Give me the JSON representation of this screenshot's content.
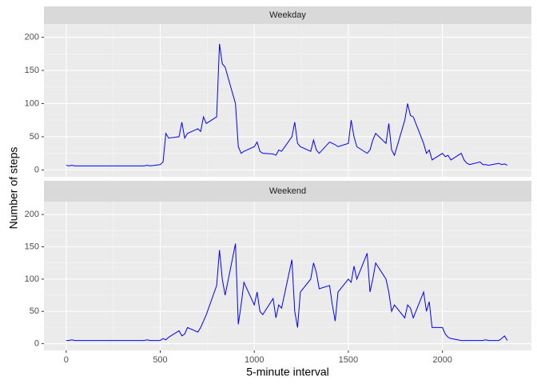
{
  "chart_data": [
    {
      "type": "line",
      "strip": "Weekday",
      "y_label": "Number of steps",
      "color": "#0000ff",
      "xlim": [
        -118,
        2473
      ],
      "ylim": [
        -10.4,
        220
      ],
      "yticks": [
        0,
        50,
        100,
        150,
        200
      ],
      "grid": true,
      "x": [
        0,
        15,
        30,
        45,
        100,
        115,
        130,
        145,
        200,
        215,
        230,
        245,
        300,
        315,
        330,
        345,
        400,
        415,
        430,
        445,
        500,
        515,
        530,
        545,
        600,
        615,
        630,
        645,
        700,
        715,
        730,
        745,
        800,
        815,
        830,
        845,
        900,
        915,
        930,
        945,
        1000,
        1015,
        1030,
        1045,
        1100,
        1115,
        1130,
        1145,
        1200,
        1215,
        1230,
        1245,
        1300,
        1315,
        1330,
        1345,
        1400,
        1415,
        1430,
        1445,
        1500,
        1515,
        1530,
        1545,
        1600,
        1615,
        1630,
        1645,
        1700,
        1715,
        1730,
        1745,
        1800,
        1815,
        1830,
        1845,
        1900,
        1915,
        1930,
        1945,
        2000,
        2015,
        2030,
        2045,
        2100,
        2115,
        2130,
        2145,
        2200,
        2215,
        2230,
        2245,
        2300,
        2315,
        2330,
        2345
      ],
      "values": [
        7,
        6,
        7,
        6,
        6,
        6,
        6,
        6,
        6,
        6,
        6,
        6,
        6,
        6,
        6,
        6,
        6,
        6,
        7,
        6,
        8,
        12,
        55,
        48,
        50,
        72,
        48,
        55,
        62,
        58,
        80,
        70,
        80,
        190,
        160,
        155,
        100,
        35,
        25,
        28,
        35,
        42,
        28,
        25,
        24,
        22,
        30,
        28,
        50,
        72,
        40,
        35,
        28,
        45,
        30,
        25,
        42,
        40,
        38,
        35,
        40,
        75,
        50,
        35,
        25,
        30,
        45,
        55,
        40,
        70,
        30,
        22,
        75,
        100,
        82,
        80,
        40,
        25,
        30,
        15,
        25,
        20,
        22,
        15,
        25,
        15,
        10,
        8,
        12,
        8,
        8,
        7,
        10,
        8,
        9,
        7
      ]
    },
    {
      "type": "line",
      "strip": "Weekend",
      "x_label": "5-minute interval",
      "color": "#0000ff",
      "xlim": [
        -118,
        2473
      ],
      "ylim": [
        -10.4,
        220
      ],
      "yticks": [
        0,
        50,
        100,
        150,
        200
      ],
      "xticks": [
        0,
        500,
        1000,
        1500,
        2000
      ],
      "grid": true,
      "x": [
        0,
        15,
        30,
        45,
        100,
        115,
        130,
        145,
        200,
        215,
        230,
        245,
        300,
        315,
        330,
        345,
        400,
        415,
        430,
        445,
        500,
        515,
        530,
        545,
        600,
        615,
        630,
        645,
        700,
        715,
        730,
        745,
        800,
        815,
        830,
        845,
        900,
        915,
        930,
        945,
        1000,
        1015,
        1030,
        1045,
        1100,
        1115,
        1130,
        1145,
        1200,
        1215,
        1230,
        1245,
        1300,
        1315,
        1330,
        1345,
        1400,
        1415,
        1430,
        1445,
        1500,
        1515,
        1530,
        1545,
        1600,
        1615,
        1630,
        1645,
        1700,
        1715,
        1730,
        1745,
        1800,
        1815,
        1830,
        1845,
        1900,
        1915,
        1930,
        1945,
        2000,
        2015,
        2030,
        2045,
        2100,
        2115,
        2130,
        2145,
        2200,
        2215,
        2230,
        2245,
        2300,
        2315,
        2330,
        2345
      ],
      "values": [
        5,
        5,
        6,
        5,
        5,
        5,
        5,
        5,
        5,
        5,
        5,
        5,
        5,
        5,
        5,
        5,
        5,
        5,
        6,
        5,
        5,
        8,
        6,
        10,
        20,
        12,
        15,
        25,
        18,
        25,
        35,
        45,
        90,
        145,
        100,
        75,
        155,
        30,
        60,
        95,
        60,
        80,
        50,
        45,
        70,
        40,
        60,
        55,
        130,
        50,
        25,
        80,
        100,
        125,
        110,
        85,
        90,
        60,
        35,
        80,
        100,
        95,
        120,
        100,
        140,
        80,
        100,
        125,
        100,
        80,
        50,
        60,
        40,
        60,
        55,
        40,
        80,
        50,
        65,
        25,
        25,
        15,
        10,
        8,
        5,
        5,
        5,
        5,
        5,
        5,
        6,
        5,
        5,
        8,
        12,
        5
      ]
    }
  ]
}
